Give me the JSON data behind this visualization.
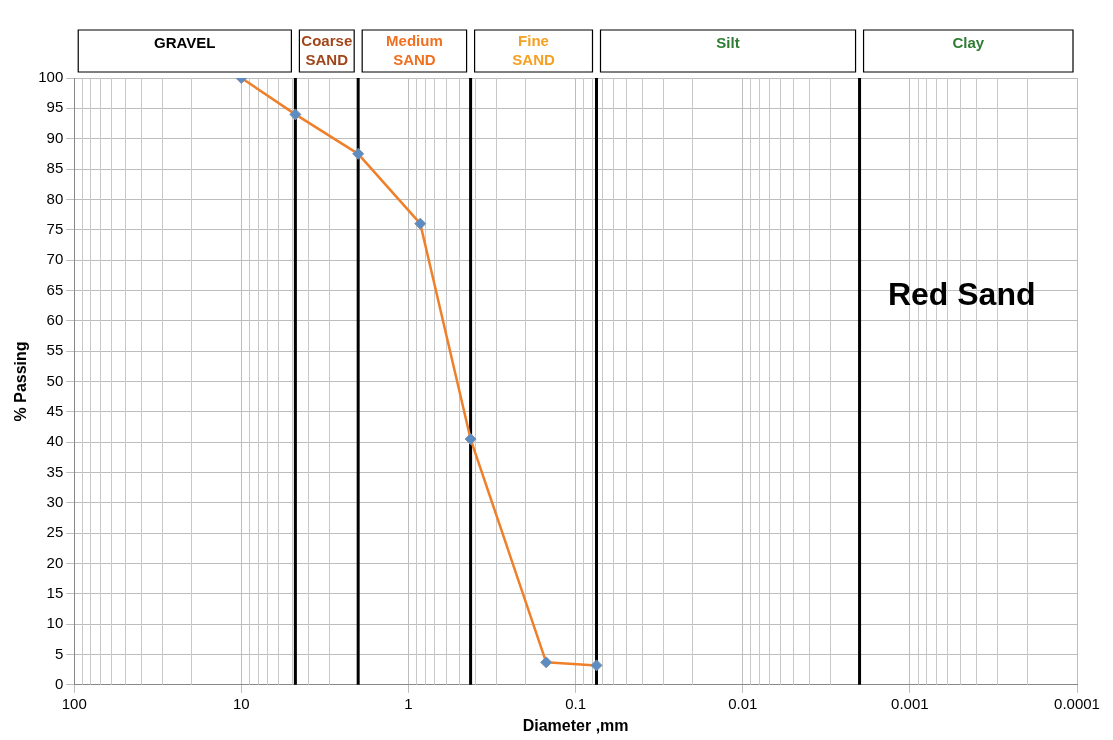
{
  "chart_data": {
    "type": "line",
    "xlabel": "Diameter ,mm",
    "ylabel": "% Passing",
    "x": [
      10,
      4.75,
      2,
      0.85,
      0.425,
      0.15,
      0.075
    ],
    "series": [
      {
        "color": "#f07f2a",
        "values": [
          100,
          94,
          87.5,
          76,
          40.5,
          3.7,
          3.2
        ]
      }
    ],
    "log": "x",
    "xlim": [
      100,
      0.0001
    ],
    "xticks": [
      100,
      10,
      1,
      0.1,
      0.01,
      0.001,
      0.0001
    ],
    "ylim": [
      0,
      100
    ],
    "yticks": [
      0,
      5,
      10,
      15,
      20,
      25,
      30,
      35,
      40,
      45,
      50,
      55,
      60,
      65,
      70,
      75,
      80,
      85,
      90,
      95,
      100
    ],
    "grid": true,
    "marker": "diamond",
    "line_style": "solid",
    "ref_lines": [
      {
        "axis": "x",
        "value": 4.75,
        "color": "#000000"
      },
      {
        "axis": "x",
        "value": 2,
        "color": "#000000"
      },
      {
        "axis": "x",
        "value": 0.425,
        "color": "#000000"
      },
      {
        "axis": "x",
        "value": 0.075,
        "color": "#000000"
      },
      {
        "axis": "x",
        "value": 0.002,
        "color": "#000000"
      }
    ],
    "annotations": [
      "GRAVEL",
      "Coarse SAND",
      "Medium SAND",
      "Fine SAND",
      "Silt",
      "Clay",
      "Red Sand"
    ]
  }
}
